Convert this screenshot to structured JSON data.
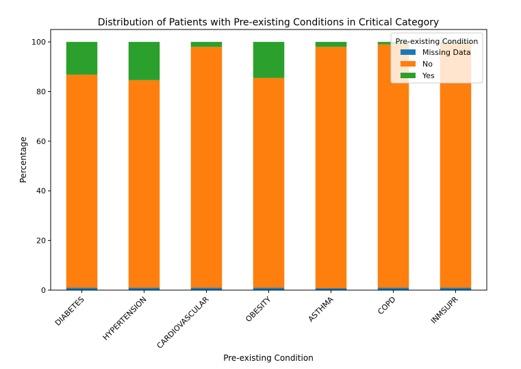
{
  "chart_data": {
    "type": "bar",
    "stacked": true,
    "title": "Distribution of Patients with Pre-existing Conditions in Critical Category",
    "xlabel": "Pre-existing Condition",
    "ylabel": "Percentage",
    "ylim": [
      0,
      105
    ],
    "yticks": [
      0,
      20,
      40,
      60,
      80,
      100
    ],
    "categories": [
      "DIABETES",
      "HYPERTENSION",
      "CARDIOVASCULAR",
      "OBESITY",
      "ASTHMA",
      "COPD",
      "INMSUPR"
    ],
    "series": [
      {
        "name": "Missing Data",
        "color": "#1f77b4",
        "values": [
          1.0,
          1.0,
          1.0,
          1.0,
          0.8,
          1.0,
          1.0
        ]
      },
      {
        "name": "No",
        "color": "#ff7f0e",
        "values": [
          85.8,
          83.6,
          97.0,
          84.5,
          97.2,
          98.0,
          98.4
        ]
      },
      {
        "name": "Yes",
        "color": "#2ca02c",
        "values": [
          13.2,
          15.4,
          2.0,
          14.5,
          2.0,
          1.0,
          0.6
        ]
      }
    ],
    "legend": {
      "title": "Pre-existing Condition",
      "position": "top-right"
    },
    "grid": false
  }
}
